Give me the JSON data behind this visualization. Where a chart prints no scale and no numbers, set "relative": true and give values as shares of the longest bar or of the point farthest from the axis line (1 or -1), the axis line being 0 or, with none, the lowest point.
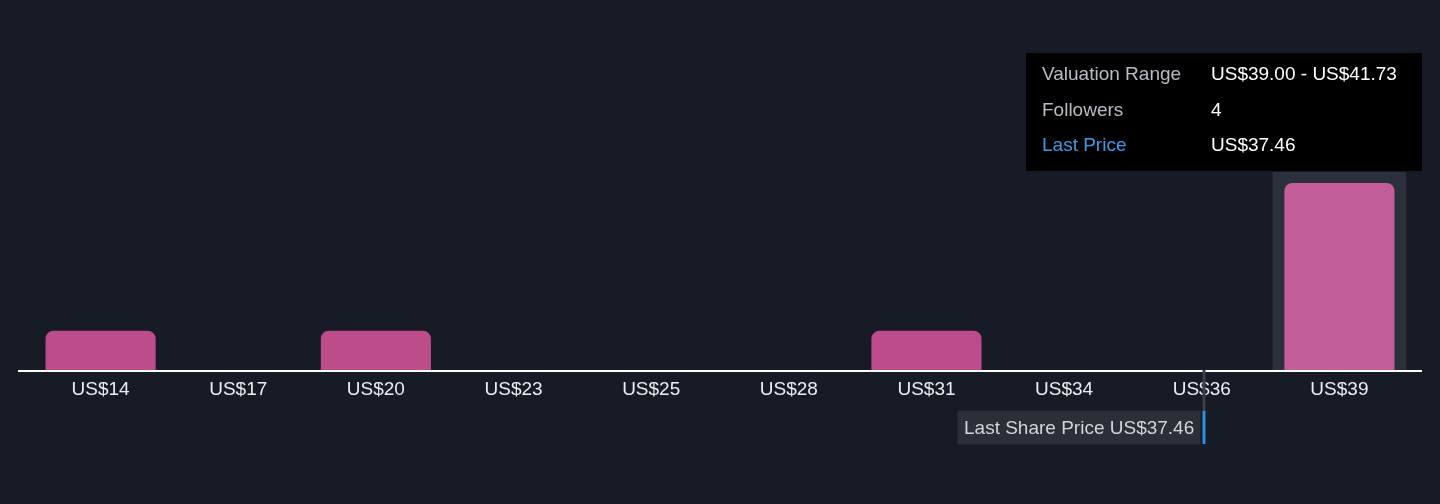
{
  "chart_data": {
    "type": "bar",
    "categories": [
      "US$14",
      "US$17",
      "US$20",
      "US$23",
      "US$25",
      "US$28",
      "US$31",
      "US$34",
      "US$36",
      "US$39"
    ],
    "values": [
      0.21,
      0,
      0.21,
      0,
      0,
      0,
      0.21,
      0,
      0,
      1
    ],
    "colors": [
      "#bc4d8a",
      "#bc4d8a",
      "#bc4d8a",
      "#bc4d8a",
      "#bc4d8a",
      "#bc4d8a",
      "#bc4d8a",
      "#bc4d8a",
      "#bc4d8a",
      "#c45e98"
    ],
    "relative": true,
    "tick_labels": "x",
    "bands": [
      {
        "axis": "x",
        "from": "US$39",
        "to": "US$39",
        "color": "#2b303a"
      }
    ],
    "annotations": [
      "Valuation Range",
      "US$39.00 - US$41.73",
      "Followers",
      "4",
      "Last Price",
      "US$37.46",
      "Last Share Price US$37.46"
    ]
  }
}
